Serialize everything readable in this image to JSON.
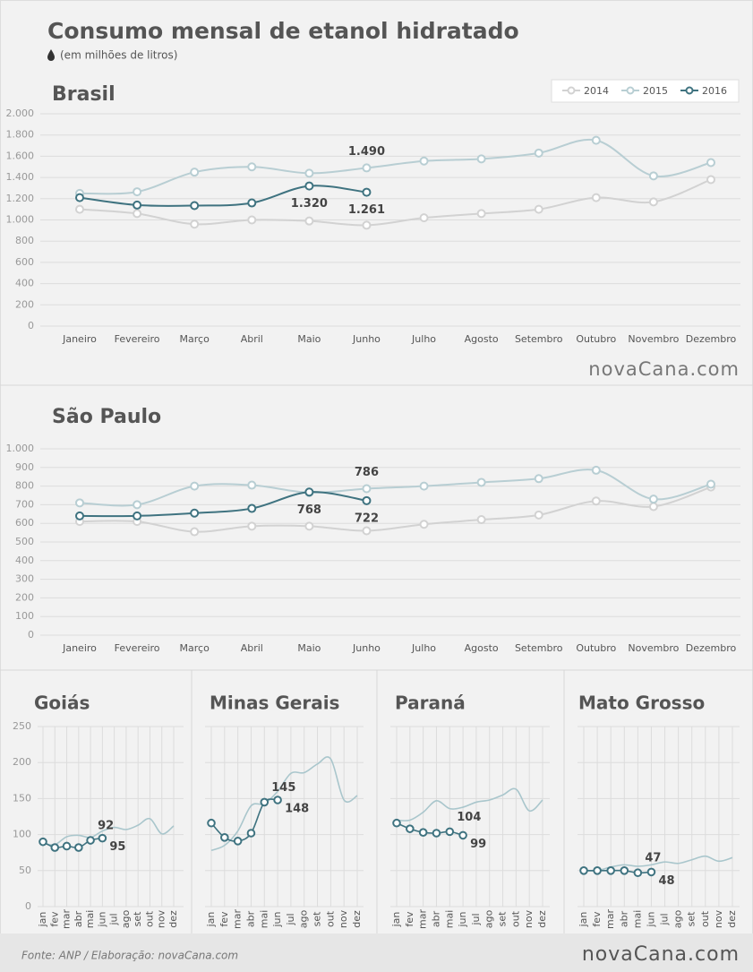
{
  "title": "Consumo mensal de etanol hidratado",
  "subtitle": "(em milhões de litros)",
  "logo": "novaCana.com",
  "source": "Fonte: ANP / Elaboração: novaCana.com",
  "chart_data": [
    {
      "type": "line",
      "title": "Brasil",
      "legend": "top-right",
      "grid": true,
      "categories": [
        "Janeiro",
        "Fevereiro",
        "Março",
        "Abril",
        "Maio",
        "Junho",
        "Julho",
        "Agosto",
        "Setembro",
        "Outubro",
        "Novembro",
        "Dezembro"
      ],
      "ylim": [
        0,
        2000
      ],
      "yticks": [
        0,
        200,
        400,
        600,
        800,
        {
          "value": 1000,
          "label": "1.000"
        },
        {
          "value": 1200,
          "label": "1.200"
        },
        {
          "value": 1400,
          "label": "1.400"
        },
        {
          "value": 1600,
          "label": "1.600"
        },
        {
          "value": 1800,
          "label": "1.800"
        },
        {
          "value": 2000,
          "label": "2.000"
        }
      ],
      "series": [
        {
          "name": "2014",
          "color": "#d2d2d2",
          "markers": true,
          "values": [
            1100,
            1060,
            960,
            1000,
            990,
            950,
            1020,
            1060,
            1100,
            1210,
            1170,
            1380
          ]
        },
        {
          "name": "2015",
          "color": "#b8ced3",
          "markers": true,
          "values": [
            1250,
            1265,
            1450,
            1500,
            1440,
            1490,
            1555,
            1575,
            1630,
            1750,
            1415,
            1540
          ],
          "value_labels": [
            null,
            null,
            null,
            null,
            null,
            "1.490",
            null,
            null,
            null,
            null,
            null,
            null
          ]
        },
        {
          "name": "2016",
          "color": "#3f7380",
          "markers": true,
          "values": [
            1210,
            1140,
            1135,
            1160,
            1320,
            1261,
            null,
            null,
            null,
            null,
            null,
            null
          ],
          "value_labels": [
            null,
            null,
            null,
            null,
            "1.320",
            "1.261",
            null,
            null,
            null,
            null,
            null,
            null
          ]
        }
      ]
    },
    {
      "type": "line",
      "title": "São Paulo",
      "grid": true,
      "categories": [
        "Janeiro",
        "Fevereiro",
        "Março",
        "Abril",
        "Maio",
        "Junho",
        "Julho",
        "Agosto",
        "Setembro",
        "Outubro",
        "Novembro",
        "Dezembro"
      ],
      "ylim": [
        0,
        1000
      ],
      "yticks": [
        0,
        100,
        200,
        300,
        400,
        500,
        600,
        700,
        800,
        900,
        {
          "value": 1000,
          "label": "1.000"
        }
      ],
      "series": [
        {
          "name": "2014",
          "color": "#d2d2d2",
          "markers": true,
          "values": [
            610,
            610,
            555,
            585,
            585,
            560,
            595,
            620,
            645,
            720,
            690,
            795
          ]
        },
        {
          "name": "2015",
          "color": "#b8ced3",
          "markers": true,
          "values": [
            710,
            700,
            800,
            805,
            765,
            786,
            800,
            820,
            840,
            885,
            730,
            810
          ],
          "value_labels": [
            null,
            null,
            null,
            null,
            null,
            "786",
            null,
            null,
            null,
            null,
            null,
            null
          ]
        },
        {
          "name": "2016",
          "color": "#3f7380",
          "markers": true,
          "values": [
            640,
            640,
            655,
            680,
            768,
            722,
            null,
            null,
            null,
            null,
            null,
            null
          ],
          "value_labels": [
            null,
            null,
            null,
            null,
            "768",
            "722",
            null,
            null,
            null,
            null,
            null,
            null
          ]
        }
      ]
    },
    {
      "type": "line",
      "title": "Goiás",
      "grid": true,
      "categories": [
        "jan",
        "fev",
        "mar",
        "abr",
        "mai",
        "jun",
        "jul",
        "ago",
        "set",
        "out",
        "nov",
        "dez"
      ],
      "ylim": [
        0,
        250
      ],
      "yticks": [
        0,
        50,
        100,
        150,
        200,
        250
      ],
      "series": [
        {
          "name": "2015",
          "color": "#a9c6cc",
          "markers": false,
          "values": [
            88,
            86,
            97,
            99,
            96,
            105,
            110,
            107,
            113,
            122,
            101,
            112
          ]
        },
        {
          "name": "2016",
          "color": "#3f7380",
          "markers": true,
          "values": [
            90,
            82,
            84,
            82,
            92,
            95,
            null,
            null,
            null,
            null,
            null,
            null
          ],
          "value_labels": [
            null,
            null,
            null,
            null,
            "92",
            "95",
            null,
            null,
            null,
            null,
            null,
            null
          ]
        }
      ]
    },
    {
      "type": "line",
      "title": "Minas Gerais",
      "grid": true,
      "categories": [
        "jan",
        "fev",
        "mar",
        "abr",
        "mai",
        "jun",
        "jul",
        "ago",
        "set",
        "out",
        "nov",
        "dez"
      ],
      "ylim": [
        0,
        250
      ],
      "yticks": [
        0,
        50,
        100,
        150,
        200,
        250
      ],
      "series": [
        {
          "name": "2015",
          "color": "#a9c6cc",
          "markers": false,
          "values": [
            78,
            85,
            105,
            140,
            143,
            160,
            185,
            186,
            198,
            205,
            148,
            154
          ]
        },
        {
          "name": "2016",
          "color": "#3f7380",
          "markers": true,
          "values": [
            116,
            96,
            91,
            102,
            145,
            148,
            null,
            null,
            null,
            null,
            null,
            null
          ],
          "value_labels": [
            null,
            null,
            null,
            null,
            "145",
            "148",
            null,
            null,
            null,
            null,
            null,
            null
          ]
        }
      ]
    },
    {
      "type": "line",
      "title": "Paraná",
      "grid": true,
      "categories": [
        "jan",
        "fev",
        "mar",
        "abr",
        "mai",
        "jun",
        "jul",
        "ago",
        "set",
        "out",
        "nov",
        "dez"
      ],
      "ylim": [
        0,
        250
      ],
      "yticks": [
        0,
        50,
        100,
        150,
        200,
        250
      ],
      "series": [
        {
          "name": "2015",
          "color": "#a9c6cc",
          "markers": false,
          "values": [
            120,
            120,
            131,
            147,
            136,
            138,
            145,
            148,
            155,
            163,
            133,
            148
          ]
        },
        {
          "name": "2016",
          "color": "#3f7380",
          "markers": true,
          "values": [
            116,
            108,
            103,
            102,
            104,
            99,
            null,
            null,
            null,
            null,
            null,
            null
          ],
          "value_labels": [
            null,
            null,
            null,
            null,
            "104",
            "99",
            null,
            null,
            null,
            null,
            null,
            null
          ]
        }
      ]
    },
    {
      "type": "line",
      "title": "Mato Grosso",
      "grid": true,
      "categories": [
        "jan",
        "fev",
        "mar",
        "abr",
        "mai",
        "jun",
        "jul",
        "ago",
        "set",
        "out",
        "nov",
        "dez"
      ],
      "ylim": [
        0,
        250
      ],
      "yticks": [
        0,
        50,
        100,
        150,
        200,
        250
      ],
      "series": [
        {
          "name": "2015",
          "color": "#a9c6cc",
          "markers": false,
          "values": [
            50,
            50,
            55,
            58,
            56,
            58,
            62,
            60,
            65,
            70,
            63,
            68
          ]
        },
        {
          "name": "2016",
          "color": "#3f7380",
          "markers": true,
          "values": [
            50,
            50,
            50,
            50,
            47,
            48,
            null,
            null,
            null,
            null,
            null,
            null
          ],
          "value_labels": [
            null,
            null,
            null,
            null,
            "47",
            "48",
            null,
            null,
            null,
            null,
            null,
            null
          ]
        }
      ]
    }
  ]
}
